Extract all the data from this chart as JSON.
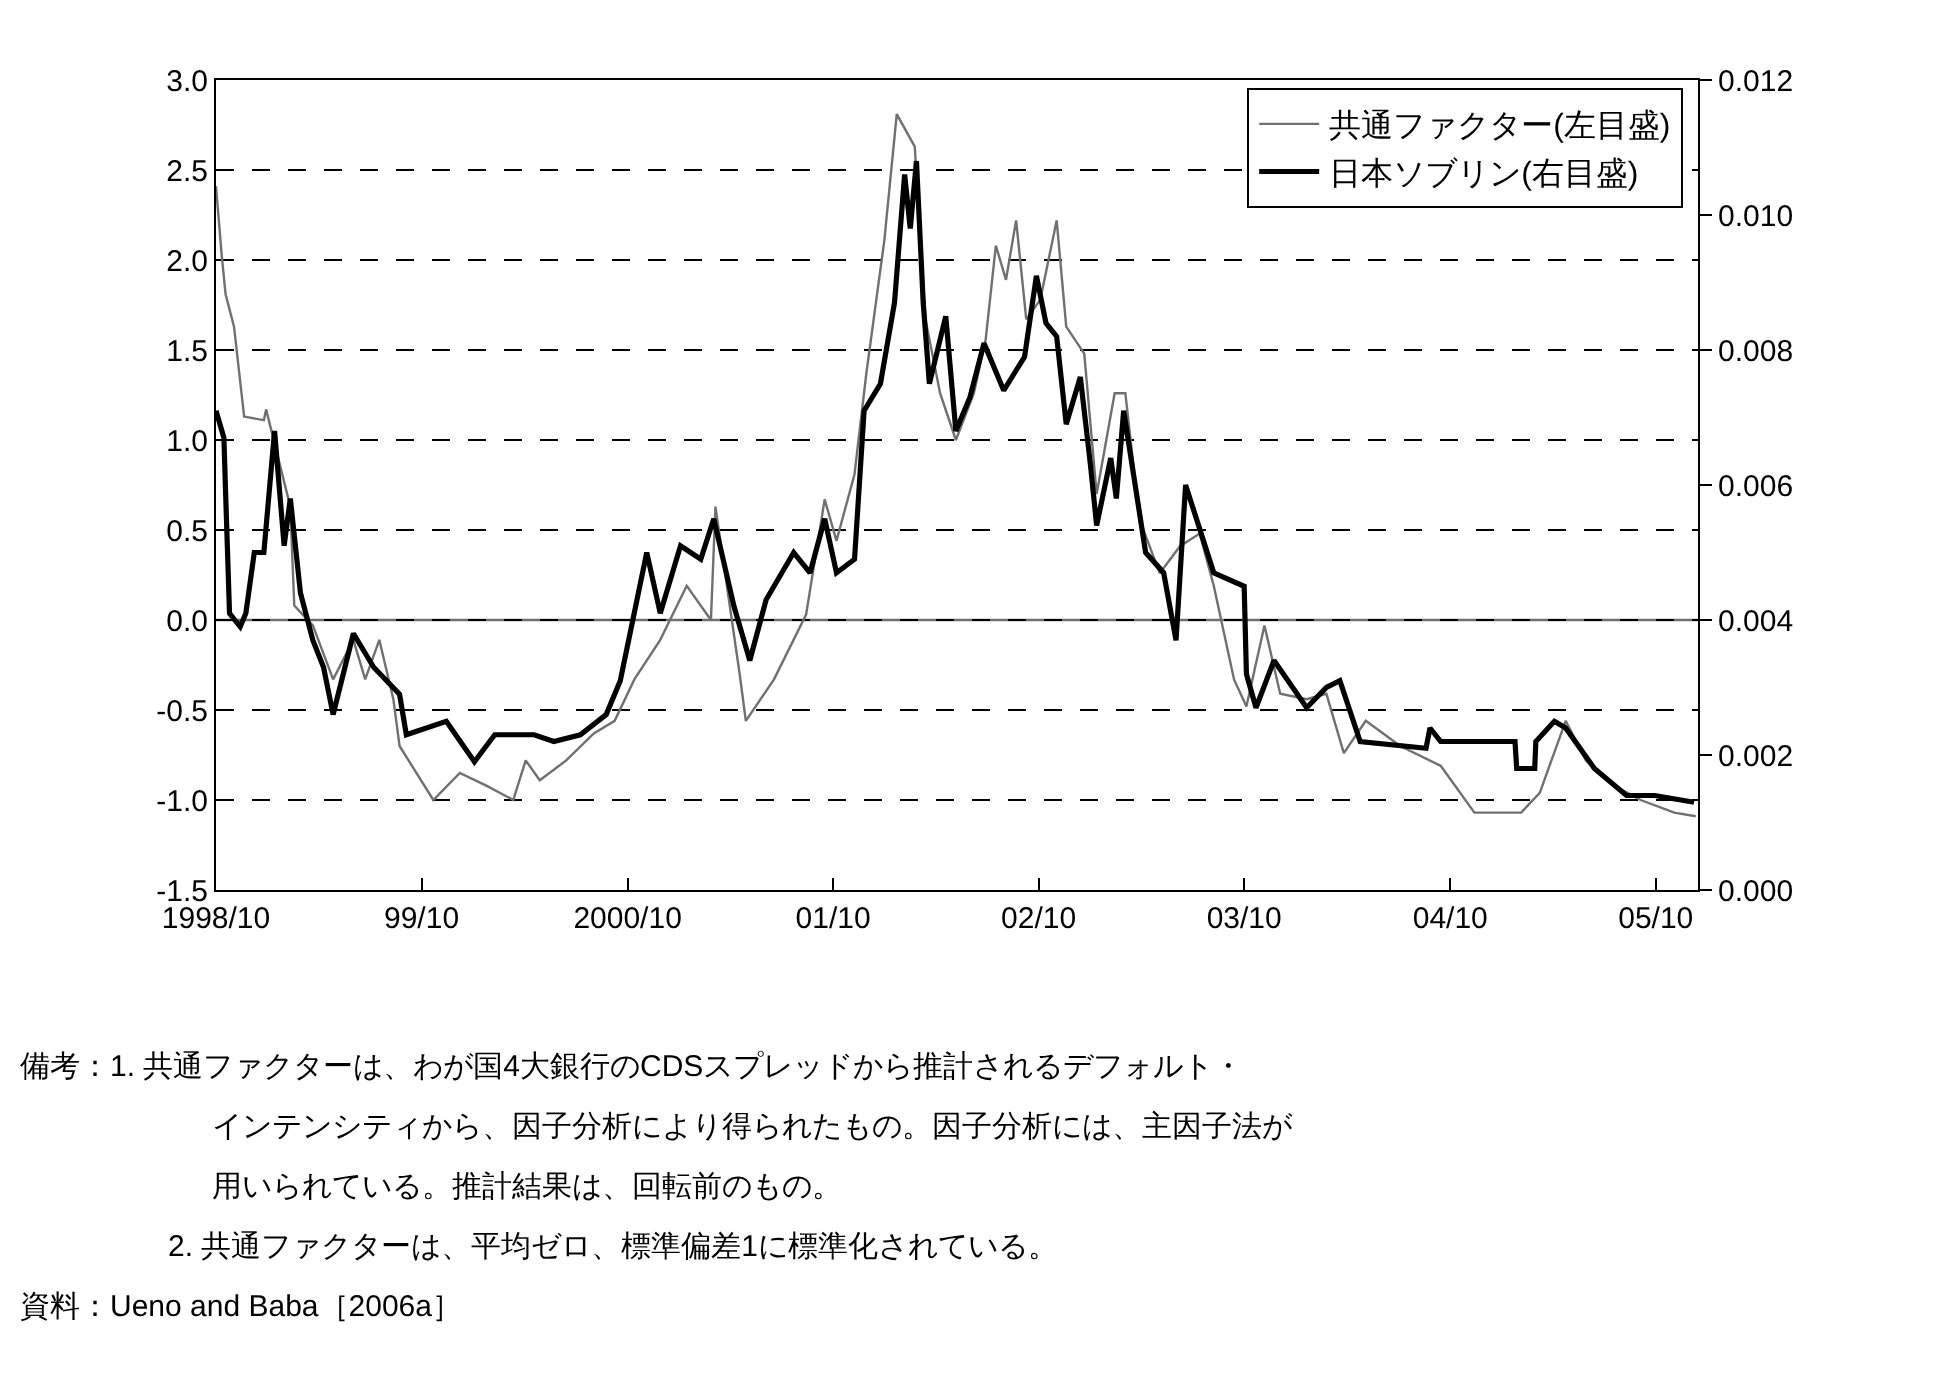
{
  "chart_data": {
    "type": "line",
    "xlim": [
      "1998-10-01",
      "2005-12-15"
    ],
    "xticks": [
      {
        "value": "1998-10-01",
        "label": "1998/10"
      },
      {
        "value": "1999-10-01",
        "label": "99/10"
      },
      {
        "value": "2000-10-01",
        "label": "2000/10"
      },
      {
        "value": "2001-10-01",
        "label": "01/10"
      },
      {
        "value": "2002-10-01",
        "label": "02/10"
      },
      {
        "value": "2003-10-01",
        "label": "03/10"
      },
      {
        "value": "2004-10-01",
        "label": "04/10"
      },
      {
        "value": "2005-10-01",
        "label": "05/10"
      }
    ],
    "ylim": [
      -1.5,
      3.0
    ],
    "yticks": [
      {
        "value": -1.5,
        "label": "-1.5"
      },
      {
        "value": -1.0,
        "label": "-1.0"
      },
      {
        "value": -0.5,
        "label": "-0.5"
      },
      {
        "value": 0,
        "label": "0.0"
      },
      {
        "value": 0.5,
        "label": "0.5"
      },
      {
        "value": 1.0,
        "label": "1.0"
      },
      {
        "value": 1.5,
        "label": "1.5"
      },
      {
        "value": 2.0,
        "label": "2.0"
      },
      {
        "value": 2.5,
        "label": "2.5"
      },
      {
        "value": 3.0,
        "label": "3.0"
      }
    ],
    "y2lim": [
      0,
      0.012
    ],
    "y2ticks": [
      {
        "value": 0,
        "label": "0.000"
      },
      {
        "value": 0.002,
        "label": "0.002"
      },
      {
        "value": 0.004,
        "label": "0.004"
      },
      {
        "value": 0.006,
        "label": "0.006"
      },
      {
        "value": 0.008,
        "label": "0.008"
      },
      {
        "value": 0.01,
        "label": "0.010"
      },
      {
        "value": 0.012,
        "label": "0.012"
      }
    ],
    "grid": "y",
    "legend": "top right",
    "ref_lines": [
      {
        "axis": "y",
        "value": 0,
        "line_style": "solid",
        "color": "#707070"
      }
    ],
    "series": [
      {
        "name": "共通ファクター(左目盛)",
        "color": "#707070",
        "x": [
          "1998-10-01",
          "1998-10-11",
          "1998-10-18",
          "1998-11-02",
          "1998-11-20",
          "1998-12-25",
          "1998-12-29",
          "1999-02-10",
          "1999-02-17",
          "1999-03-22",
          "1999-04-27",
          "1999-06-02",
          "1999-06-23",
          "1999-07-18",
          "1999-08-12",
          "1999-08-23",
          "1999-10-22",
          "1999-12-08",
          "2000-01-24",
          "2000-03-12",
          "2000-04-03",
          "2000-04-28",
          "2000-06-14",
          "2000-08-02",
          "2000-09-08",
          "2000-10-13",
          "2000-11-28",
          "2001-01-14",
          "2001-02-26",
          "2001-03-06",
          "2001-04-18",
          "2001-04-29",
          "2001-06-18",
          "2001-08-14",
          "2001-09-16",
          "2001-10-07",
          "2001-11-08",
          "2001-11-29",
          "2001-12-31",
          "2002-01-22",
          "2002-02-23",
          "2002-03-14",
          "2002-04-09",
          "2002-05-07",
          "2002-06-08",
          "2002-06-29",
          "2002-07-17",
          "2002-08-04",
          "2002-08-22",
          "2002-09-09",
          "2002-10-04",
          "2002-11-02",
          "2002-11-19",
          "2002-12-21",
          "2003-01-12",
          "2003-02-13",
          "2003-03-04",
          "2003-03-29",
          "2003-05-04",
          "2003-06-09",
          "2003-07-14",
          "2003-08-08",
          "2003-09-13",
          "2003-10-05",
          "2003-11-06",
          "2003-12-04",
          "2004-01-20",
          "2004-02-24",
          "2004-03-26",
          "2004-05-04",
          "2004-07-04",
          "2004-09-14",
          "2004-11-13",
          "2005-02-04",
          "2005-03-09",
          "2005-04-24",
          "2005-05-30",
          "2005-07-19",
          "2005-09-04",
          "2005-11-03",
          "2005-12-11"
        ],
        "values": [
          2.41,
          2.03,
          1.81,
          1.63,
          1.13,
          1.11,
          1.17,
          0.63,
          0.08,
          -0.03,
          -0.33,
          -0.11,
          -0.33,
          -0.11,
          -0.44,
          -0.7,
          -1.0,
          -0.85,
          -0.92,
          -1.0,
          -0.78,
          -0.89,
          -0.78,
          -0.63,
          -0.56,
          -0.33,
          -0.11,
          0.19,
          0.0,
          0.63,
          -0.3,
          -0.56,
          -0.33,
          0.03,
          0.67,
          0.44,
          0.81,
          1.37,
          2.11,
          2.81,
          2.63,
          1.67,
          1.26,
          1.0,
          1.26,
          1.56,
          2.08,
          1.89,
          2.22,
          1.67,
          1.78,
          2.22,
          1.63,
          1.48,
          0.7,
          1.26,
          1.26,
          0.56,
          0.26,
          0.41,
          0.48,
          0.19,
          -0.33,
          -0.48,
          -0.03,
          -0.41,
          -0.44,
          -0.41,
          -0.74,
          -0.56,
          -0.7,
          -0.81,
          -1.07,
          -1.07,
          -0.96,
          -0.56,
          -0.78,
          -0.92,
          -1.0,
          -1.07,
          -1.09
        ]
      },
      {
        "name": "日本ソブリン(右目盛)",
        "color": "#000000",
        "axis": "y2",
        "x": [
          "1998-10-01",
          "1998-10-15",
          "1998-10-18",
          "1998-10-25",
          "1998-11-13",
          "1998-11-23",
          "1998-12-08",
          "1998-12-25",
          "1999-01-13",
          "1999-01-30",
          "1999-02-10",
          "1999-02-28",
          "1999-03-22",
          "1999-04-10",
          "1999-04-27",
          "1999-06-02",
          "1999-07-08",
          "1999-08-23",
          "1999-09-04",
          "1999-11-14",
          "2000-01-03",
          "2000-02-08",
          "2000-04-18",
          "2000-05-23",
          "2000-07-09",
          "2000-08-24",
          "2000-09-18",
          "2000-11-04",
          "2000-11-28",
          "2001-01-03",
          "2001-02-08",
          "2001-03-03",
          "2001-04-08",
          "2001-05-06",
          "2001-06-04",
          "2001-07-23",
          "2001-08-21",
          "2001-09-16",
          "2001-10-07",
          "2001-11-08",
          "2001-11-25",
          "2001-12-24",
          "2002-01-18",
          "2002-02-05",
          "2002-02-15",
          "2002-02-26",
          "2002-03-10",
          "2002-03-21",
          "2002-04-19",
          "2002-05-07",
          "2002-06-01",
          "2002-06-26",
          "2002-07-31",
          "2002-09-06",
          "2002-09-27",
          "2002-10-14",
          "2002-11-02",
          "2002-11-19",
          "2002-12-14",
          "2003-01-01",
          "2003-01-12",
          "2003-02-06",
          "2003-02-16",
          "2003-03-01",
          "2003-04-09",
          "2003-05-11",
          "2003-06-02",
          "2003-06-19",
          "2003-08-08",
          "2003-10-01",
          "2003-10-05",
          "2003-10-22",
          "2003-11-23",
          "2004-01-20",
          "2004-02-24",
          "2004-03-19",
          "2004-04-24",
          "2004-08-19",
          "2004-08-26",
          "2004-09-14",
          "2005-01-24",
          "2005-01-27",
          "2005-02-28",
          "2005-03-02",
          "2005-04-04",
          "2005-04-24",
          "2005-06-14",
          "2005-08-10",
          "2005-09-29",
          "2005-12-08"
        ],
        "values": [
          0.0071,
          0.0067,
          0.0059,
          0.0041,
          0.0039,
          0.0041,
          0.005,
          0.005,
          0.0068,
          0.0051,
          0.0058,
          0.0044,
          0.0037,
          0.0033,
          0.0026,
          0.0038,
          0.0033,
          0.0029,
          0.0023,
          0.0025,
          0.0019,
          0.0023,
          0.0023,
          0.0022,
          0.0023,
          0.0026,
          0.0031,
          0.005,
          0.0041,
          0.0051,
          0.0049,
          0.0055,
          0.0042,
          0.0034,
          0.0043,
          0.005,
          0.0047,
          0.0055,
          0.0047,
          0.0049,
          0.0071,
          0.0075,
          0.0087,
          0.0106,
          0.0098,
          0.0108,
          0.0087,
          0.0075,
          0.0085,
          0.0068,
          0.0073,
          0.0081,
          0.0074,
          0.0079,
          0.0091,
          0.0084,
          0.0082,
          0.0069,
          0.0076,
          0.0063,
          0.0054,
          0.0064,
          0.0058,
          0.0071,
          0.005,
          0.0047,
          0.0037,
          0.006,
          0.0047,
          0.0045,
          0.0032,
          0.0027,
          0.0034,
          0.0027,
          0.003,
          0.0031,
          0.0022,
          0.0021,
          0.0024,
          0.0022,
          0.0022,
          0.0018,
          0.0018,
          0.0022,
          0.0025,
          0.0024,
          0.0018,
          0.0014,
          0.0014,
          0.0013
        ]
      }
    ],
    "annotations": [
      "備考：1. 共通ファクターは、わが国4大銀行のCDSスプレッドから推計されるデフォルト・",
      "インテンシティから、因子分析により得られたもの。因子分析には、主因子法が",
      "用いられている。推計結果は、回転前のもの。",
      "2. 共通ファクターは、平均ゼロ、標準偏差1に標準化されている。",
      "資料：Ueno and Baba［2006a］"
    ]
  }
}
